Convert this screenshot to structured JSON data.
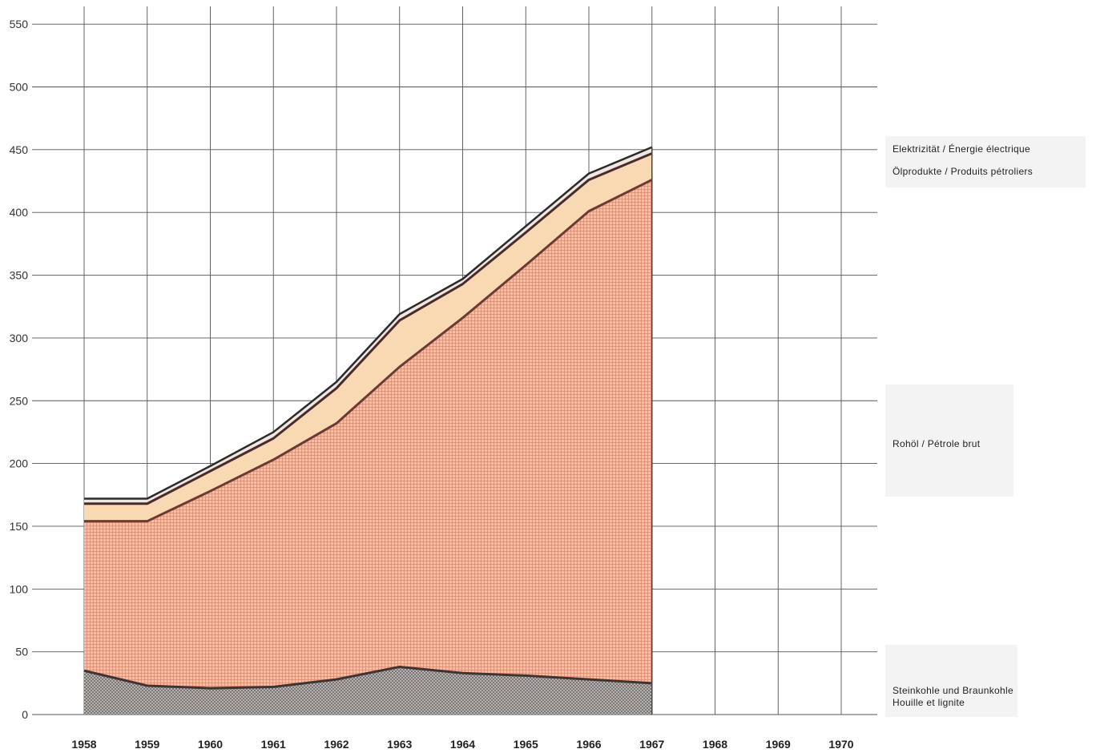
{
  "chart_data": {
    "type": "area",
    "stacked": true,
    "title": "",
    "xlabel": "",
    "ylabel": "",
    "x": [
      1958,
      1959,
      1960,
      1961,
      1962,
      1963,
      1964,
      1965,
      1966,
      1967
    ],
    "x_ticks": [
      "1958",
      "1959",
      "1960",
      "1961",
      "1962",
      "1963",
      "1964",
      "1965",
      "1966",
      "1967",
      "1968",
      "1969",
      "1970"
    ],
    "xlim": [
      1958,
      1970
    ],
    "y_ticks": [
      "0",
      "50",
      "100",
      "150",
      "200",
      "250",
      "300",
      "350",
      "400",
      "450",
      "500",
      "550"
    ],
    "ylim": [
      0,
      550
    ],
    "grid": true,
    "legend_placement": "right",
    "series": [
      {
        "name": "Steinkohle und Braunkohle / Houille et lignite",
        "label_lines": [
          "Steinkohle und Braunkohle",
          "Houille et lignite"
        ],
        "values": [
          35,
          23,
          21,
          22,
          28,
          38,
          33,
          31,
          28,
          25
        ],
        "color": "#b0aaa8"
      },
      {
        "name": "Rohöl / Pétrole brut",
        "label_lines": [
          "Rohöl  /  Pétrole brut"
        ],
        "values": [
          119,
          131,
          157,
          181,
          204,
          239,
          283,
          327,
          373,
          401
        ],
        "color": "#f2b89a"
      },
      {
        "name": "Ölprodukte / Produits pétroliers",
        "label_lines": [
          "Ölprodukte  /  Produits pétroliers"
        ],
        "values": [
          14,
          14,
          16,
          17,
          28,
          37,
          27,
          26,
          25,
          21
        ],
        "color": "#f8d8b0"
      },
      {
        "name": "Elektrizität / Énergie électrique",
        "label_lines": [
          "Elektrizität  /  Énergie électrique"
        ],
        "values": [
          4,
          4,
          4,
          5,
          5,
          5,
          4,
          5,
          5,
          5
        ],
        "color": "#e8e0d8"
      }
    ]
  }
}
